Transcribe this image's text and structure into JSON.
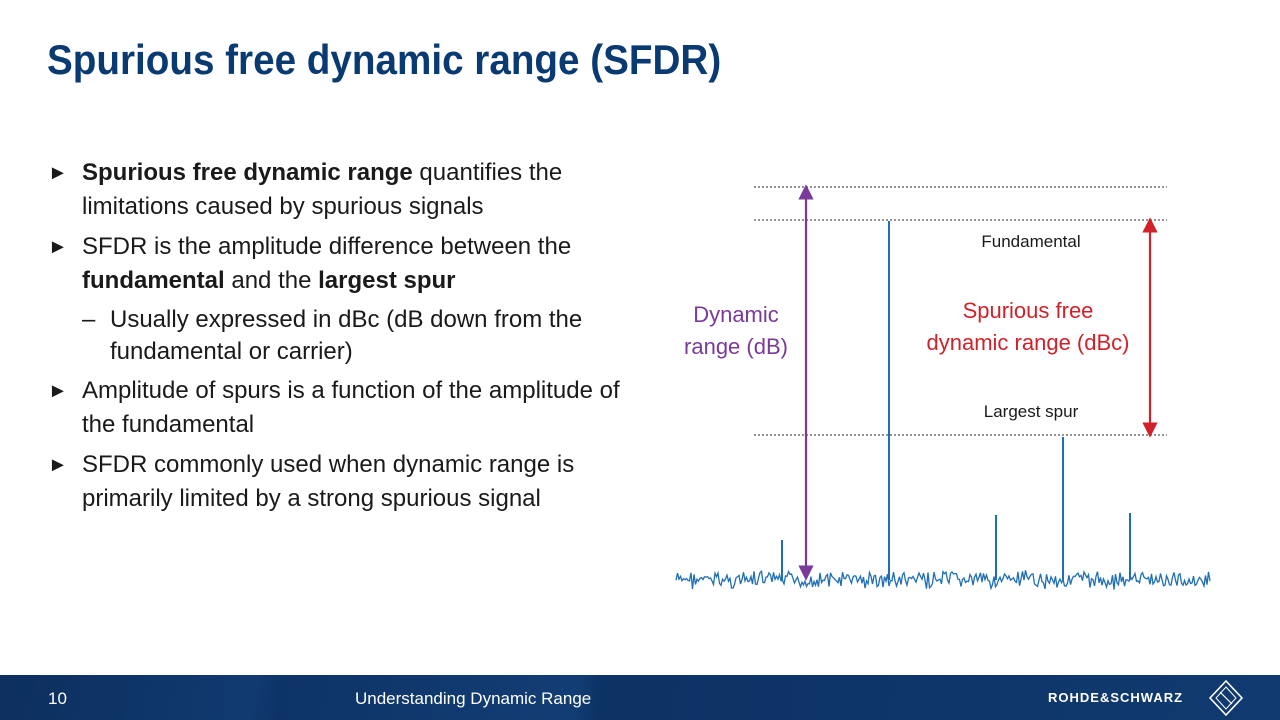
{
  "slide": {
    "title": "Spurious free dynamic range (SFDR)"
  },
  "bullets": [
    {
      "bold": "Spurious free dynamic range",
      "text": " quantifies the limitations caused by spurious signals"
    },
    {
      "pre": "SFDR is the amplitude difference between the ",
      "b1": "fundamental",
      "mid": " and the ",
      "b2": "largest spur"
    },
    {
      "text": "Usually expressed in dBc (dB down from the fundamental or carrier)"
    },
    {
      "text": "Amplitude of spurs is a function of the amplitude of the fundamental"
    },
    {
      "text": "SFDR commonly used when dynamic range is primarily limited by a strong spurious signal"
    }
  ],
  "diagram": {
    "dynamic_range_label_1": "Dynamic",
    "dynamic_range_label_2": "range (dB)",
    "sfdr_label_1": "Spurious free",
    "sfdr_label_2": "dynamic range (dBc)",
    "fundamental_label": "Fundamental",
    "largest_spur_label": "Largest spur",
    "colors": {
      "signal": "#1f6fb5",
      "dynamic_range": "#7a3a9a",
      "sfdr": "#d0222a",
      "reference_lines": "#555555"
    }
  },
  "footer": {
    "page_number": "10",
    "course_title": "Understanding Dynamic Range",
    "brand": "ROHDE&SCHWARZ"
  }
}
